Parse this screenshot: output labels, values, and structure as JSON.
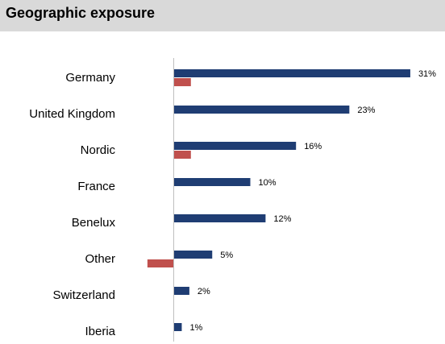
{
  "header": {
    "title": "Geographic exposure"
  },
  "colors": {
    "primary": "#1f3d73",
    "secondary": "#c0504d",
    "axis": "#bfbfbf",
    "text": "#000000",
    "header_bg": "#d9d9d9"
  },
  "chart_data": {
    "type": "bar",
    "orientation": "horizontal",
    "title": "Geographic exposure",
    "categories": [
      "Germany",
      "United Kingdom",
      "Nordic",
      "France",
      "Benelux",
      "Other",
      "Switzerland",
      "Iberia"
    ],
    "series": [
      {
        "values": [
          31,
          23,
          16,
          10,
          12,
          5,
          2,
          1
        ],
        "labels": [
          "31%",
          "23%",
          "16%",
          "10%",
          "12%",
          "5%",
          "2%",
          "1%"
        ]
      },
      {
        "values": [
          2.2,
          0,
          2.2,
          0,
          0,
          -3.4,
          0,
          0
        ]
      }
    ],
    "grid": false,
    "legend": "none"
  }
}
